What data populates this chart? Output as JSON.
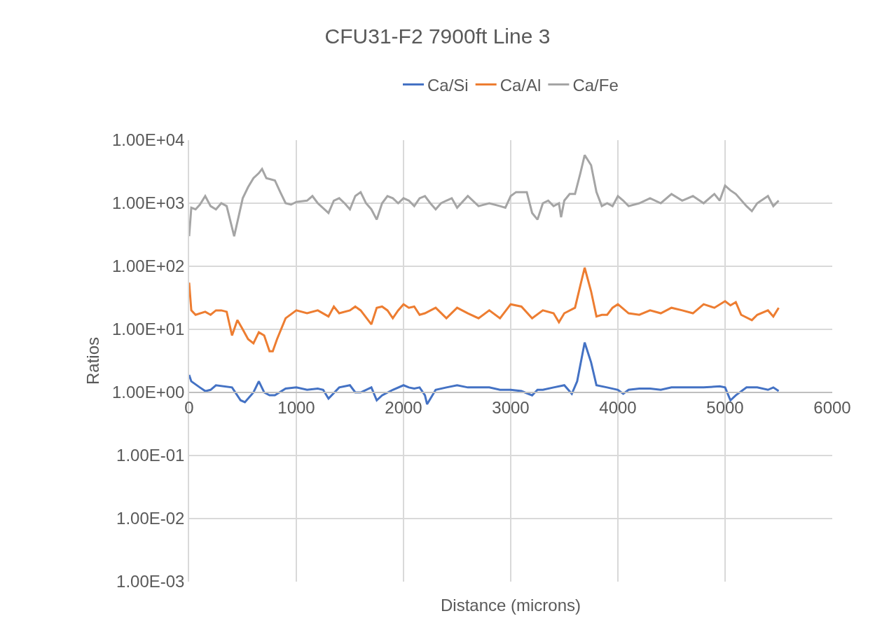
{
  "chart_data": {
    "type": "line",
    "title": "CFU31-F2 7900ft Line 3",
    "xlabel": "Distance (microns)",
    "ylabel": "Ratios",
    "log": "y",
    "grid": true,
    "legend": "top",
    "marker": "none",
    "line_style": "solid",
    "xlim": [
      0,
      6000
    ],
    "xticks": [
      0,
      1000,
      2000,
      3000,
      4000,
      5000,
      6000
    ],
    "ylim": [
      0.001,
      10000
    ],
    "yticks": [
      {
        "value": 0.001,
        "label": "1.00E-03"
      },
      {
        "value": 0.01,
        "label": "1.00E-02"
      },
      {
        "value": 0.1,
        "label": "1.00E-01"
      },
      {
        "value": 1,
        "label": "1.00E+00"
      },
      {
        "value": 10,
        "label": "1.00E+01"
      },
      {
        "value": 100,
        "label": "1.00E+02"
      },
      {
        "value": 1000,
        "label": "1.00E+03"
      },
      {
        "value": 10000,
        "label": "1.00E+04"
      }
    ],
    "series": [
      {
        "name": "Ca/Si",
        "color": "#4472c4",
        "x": [
          0,
          20,
          100,
          150,
          200,
          250,
          400,
          480,
          520,
          600,
          650,
          700,
          750,
          800,
          900,
          1000,
          1100,
          1200,
          1250,
          1300,
          1400,
          1500,
          1550,
          1600,
          1700,
          1750,
          1800,
          1900,
          2000,
          2050,
          2100,
          2150,
          2200,
          2220,
          2300,
          2400,
          2500,
          2600,
          2700,
          2800,
          2900,
          3000,
          3100,
          3200,
          3250,
          3300,
          3400,
          3500,
          3570,
          3620,
          3690,
          3750,
          3800,
          3900,
          4000,
          4050,
          4100,
          4200,
          4300,
          4400,
          4500,
          4600,
          4700,
          4800,
          4950,
          5000,
          5050,
          5100,
          5200,
          5300,
          5400,
          5450,
          5500
        ],
        "values": [
          1.9,
          1.5,
          1.2,
          1.05,
          1.1,
          1.3,
          1.2,
          0.75,
          0.7,
          1.0,
          1.5,
          1.0,
          0.9,
          0.9,
          1.15,
          1.2,
          1.1,
          1.15,
          1.1,
          0.8,
          1.2,
          1.3,
          1.0,
          1.0,
          1.2,
          0.75,
          0.9,
          1.1,
          1.3,
          1.2,
          1.15,
          1.2,
          0.9,
          0.65,
          1.1,
          1.2,
          1.3,
          1.2,
          1.2,
          1.2,
          1.1,
          1.1,
          1.05,
          0.9,
          1.1,
          1.1,
          1.2,
          1.3,
          0.95,
          1.5,
          6.2,
          3,
          1.3,
          1.2,
          1.1,
          0.95,
          1.1,
          1.15,
          1.15,
          1.1,
          1.2,
          1.2,
          1.2,
          1.2,
          1.25,
          1.2,
          0.75,
          0.9,
          1.2,
          1.2,
          1.1,
          1.2,
          1.05
        ]
      },
      {
        "name": "Ca/Al",
        "color": "#ed7d31",
        "x": [
          0,
          20,
          60,
          150,
          200,
          250,
          300,
          350,
          400,
          450,
          500,
          550,
          600,
          650,
          700,
          750,
          780,
          820,
          900,
          1000,
          1100,
          1200,
          1300,
          1350,
          1400,
          1500,
          1550,
          1600,
          1700,
          1750,
          1800,
          1850,
          1900,
          1950,
          2000,
          2050,
          2100,
          2150,
          2200,
          2300,
          2400,
          2500,
          2600,
          2700,
          2800,
          2900,
          3000,
          3100,
          3200,
          3300,
          3400,
          3450,
          3500,
          3600,
          3650,
          3690,
          3750,
          3800,
          3850,
          3900,
          3950,
          4000,
          4100,
          4200,
          4300,
          4400,
          4500,
          4600,
          4700,
          4800,
          4900,
          5000,
          5050,
          5100,
          5150,
          5250,
          5300,
          5400,
          5450,
          5500
        ],
        "values": [
          55,
          20,
          17,
          19,
          17,
          20,
          20,
          19,
          8,
          14,
          10,
          7,
          6,
          9,
          8,
          4.5,
          4.5,
          7,
          15,
          20,
          18,
          20,
          16,
          23,
          18,
          20,
          23,
          20,
          12,
          22,
          23,
          20,
          15,
          20,
          25,
          22,
          23,
          17,
          18,
          22,
          15,
          22,
          18,
          15,
          20,
          15,
          25,
          23,
          15,
          20,
          18,
          13,
          18,
          22,
          50,
          95,
          40,
          16,
          17,
          17,
          22,
          25,
          18,
          17,
          20,
          18,
          22,
          20,
          18,
          25,
          22,
          28,
          24,
          27,
          17,
          14,
          17,
          20,
          16,
          22
        ]
      },
      {
        "name": "Ca/Fe",
        "color": "#a5a5a5",
        "x": [
          0,
          20,
          60,
          100,
          150,
          200,
          250,
          300,
          350,
          420,
          500,
          550,
          600,
          650,
          680,
          720,
          800,
          850,
          900,
          950,
          1000,
          1100,
          1150,
          1200,
          1300,
          1350,
          1400,
          1450,
          1500,
          1550,
          1600,
          1650,
          1700,
          1750,
          1800,
          1850,
          1900,
          1950,
          2000,
          2050,
          2100,
          2150,
          2200,
          2250,
          2300,
          2350,
          2400,
          2450,
          2500,
          2600,
          2700,
          2800,
          2900,
          2950,
          3000,
          3050,
          3100,
          3150,
          3200,
          3250,
          3300,
          3350,
          3400,
          3450,
          3470,
          3500,
          3550,
          3600,
          3650,
          3690,
          3750,
          3800,
          3850,
          3900,
          3950,
          4000,
          4050,
          4100,
          4200,
          4300,
          4400,
          4500,
          4600,
          4700,
          4800,
          4900,
          4950,
          5000,
          5050,
          5100,
          5200,
          5250,
          5300,
          5400,
          5450,
          5500
        ],
        "values": [
          300,
          850,
          800,
          950,
          1300,
          900,
          800,
          1000,
          900,
          300,
          1200,
          1800,
          2500,
          3000,
          3500,
          2500,
          2300,
          1500,
          1000,
          950,
          1050,
          1100,
          1300,
          1000,
          700,
          1100,
          1200,
          1000,
          800,
          1300,
          1500,
          1000,
          800,
          550,
          1000,
          1300,
          1200,
          1000,
          1200,
          1100,
          900,
          1200,
          1300,
          1000,
          800,
          1000,
          1100,
          1200,
          850,
          1300,
          900,
          1000,
          900,
          850,
          1300,
          1500,
          1500,
          1500,
          700,
          550,
          1000,
          1100,
          900,
          1000,
          600,
          1100,
          1400,
          1400,
          3000,
          5800,
          4000,
          1500,
          900,
          1000,
          900,
          1300,
          1100,
          900,
          1000,
          1200,
          1000,
          1400,
          1100,
          1300,
          1000,
          1400,
          1100,
          1900,
          1600,
          1400,
          900,
          750,
          1000,
          1300,
          900,
          1100
        ]
      }
    ]
  }
}
